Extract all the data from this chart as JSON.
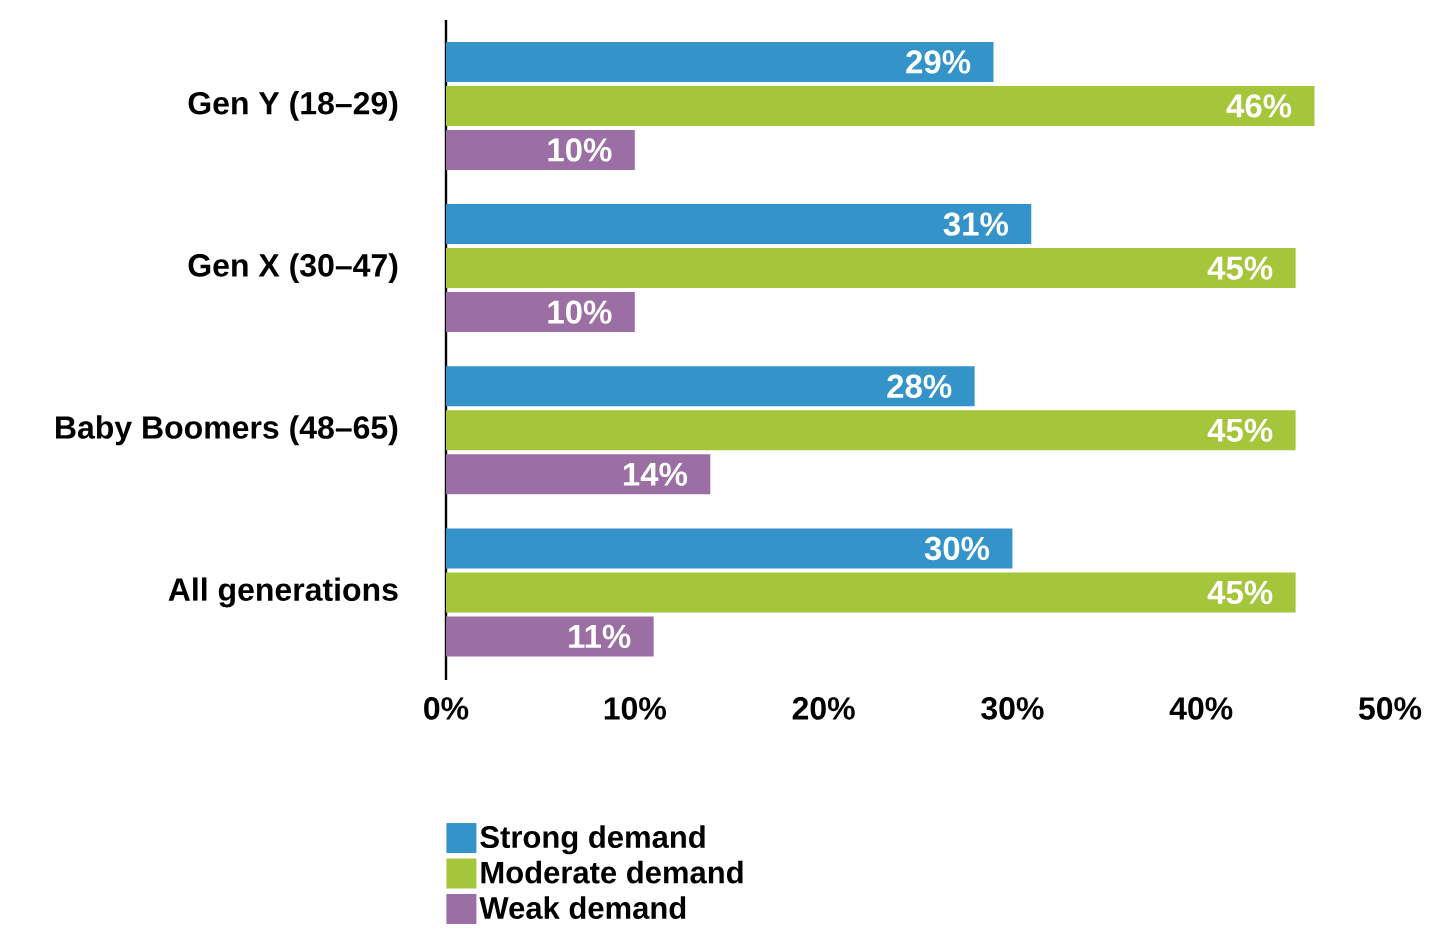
{
  "chart_data": {
    "type": "bar",
    "orientation": "horizontal",
    "categories": [
      "Gen Y (18–29)",
      "Gen X (30–47)",
      "Baby Boomers (48–65)",
      "All generations"
    ],
    "series": [
      {
        "name": "Strong demand",
        "color": "#3494ca",
        "values": [
          29,
          31,
          28,
          30
        ],
        "value_labels": [
          "29%",
          "31%",
          "28%",
          "30%"
        ]
      },
      {
        "name": "Moderate demand",
        "color": "#a5c53b",
        "values": [
          46,
          45,
          45,
          45
        ],
        "value_labels": [
          "46%",
          "45%",
          "45%",
          "45%"
        ]
      },
      {
        "name": "Weak demand",
        "color": "#9b6fa3",
        "values": [
          10,
          10,
          14,
          11
        ],
        "value_labels": [
          "10%",
          "10%",
          "14%",
          "11%"
        ]
      }
    ],
    "xlim": [
      0,
      50
    ],
    "xticks": [
      {
        "value": 0,
        "label": "0%"
      },
      {
        "value": 10,
        "label": "10%"
      },
      {
        "value": 20,
        "label": "20%"
      },
      {
        "value": 30,
        "label": "30%"
      },
      {
        "value": 40,
        "label": "40%"
      },
      {
        "value": 50,
        "label": "50%"
      }
    ],
    "legend": "bottom"
  }
}
